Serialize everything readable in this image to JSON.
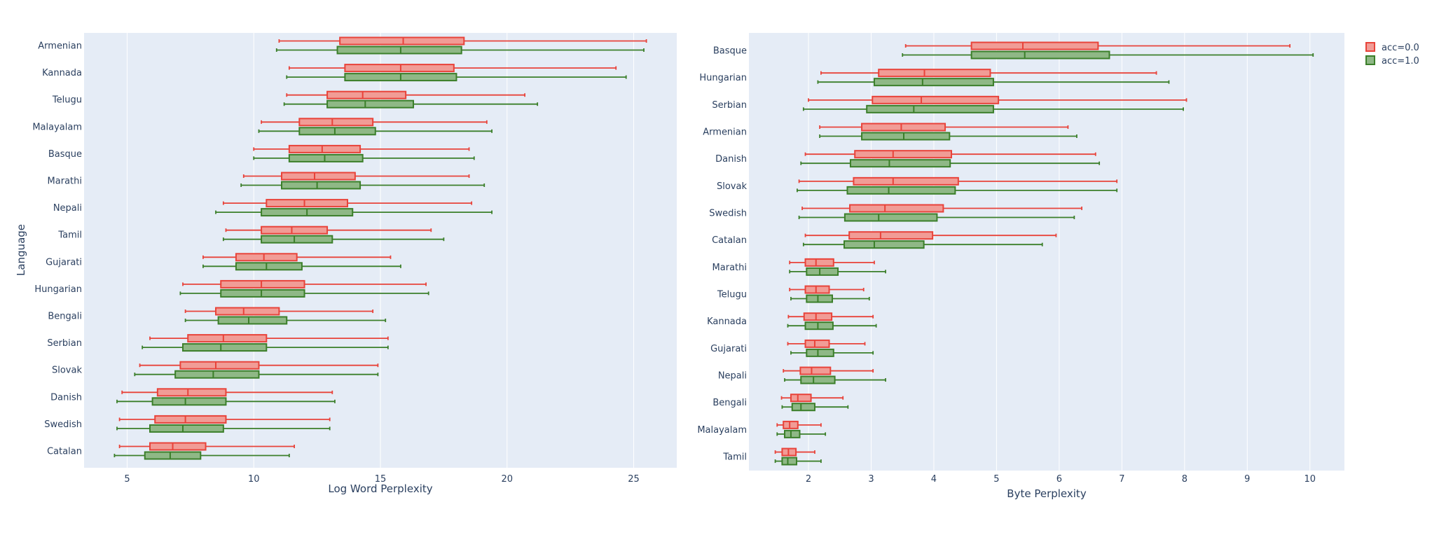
{
  "colors": {
    "plot_bg": "#e5ecf6",
    "grid": "#ffffff",
    "text": "#2a3f5f",
    "acc0_line": "#e8433a",
    "acc0_fill": "#f19c96",
    "acc1_line": "#3b7f2a",
    "acc1_fill": "#8fb886"
  },
  "chart_data": [
    {
      "type": "box",
      "orientation": "horizontal",
      "xlabel": "Log Word Perplexity",
      "ylabel": "Language",
      "xlim": [
        3.3,
        26.7
      ],
      "xticks": [
        5,
        10,
        15,
        20,
        25
      ],
      "grid": true,
      "categories": [
        "Armenian",
        "Kannada",
        "Telugu",
        "Malayalam",
        "Basque",
        "Marathi",
        "Nepali",
        "Tamil",
        "Gujarati",
        "Hungarian",
        "Bengali",
        "Serbian",
        "Slovak",
        "Danish",
        "Swedish",
        "Catalan"
      ],
      "series": [
        {
          "name": "acc=0.0",
          "color_key": "acc0",
          "boxes": [
            [
              11.0,
              13.4,
              15.9,
              18.3,
              25.5
            ],
            [
              11.4,
              13.6,
              15.8,
              17.9,
              24.3
            ],
            [
              11.3,
              12.9,
              14.3,
              16.0,
              20.7
            ],
            [
              10.3,
              11.8,
              13.1,
              14.7,
              19.2
            ],
            [
              10.0,
              11.4,
              12.7,
              14.2,
              18.5
            ],
            [
              9.6,
              11.1,
              12.4,
              14.0,
              18.5
            ],
            [
              8.8,
              10.5,
              12.0,
              13.7,
              18.6
            ],
            [
              8.9,
              10.3,
              11.5,
              12.9,
              17.0
            ],
            [
              8.0,
              9.3,
              10.4,
              11.7,
              15.4
            ],
            [
              7.2,
              8.7,
              10.3,
              12.0,
              16.8
            ],
            [
              7.3,
              8.5,
              9.6,
              11.0,
              14.7
            ],
            [
              5.9,
              7.4,
              8.8,
              10.5,
              15.3
            ],
            [
              5.5,
              7.1,
              8.5,
              10.2,
              14.9
            ],
            [
              4.8,
              6.2,
              7.4,
              8.9,
              13.1
            ],
            [
              4.7,
              6.1,
              7.3,
              8.9,
              13.0
            ],
            [
              4.7,
              5.9,
              6.8,
              8.1,
              11.6
            ]
          ]
        },
        {
          "name": "acc=1.0",
          "color_key": "acc1",
          "boxes": [
            [
              10.9,
              13.3,
              15.8,
              18.2,
              25.4
            ],
            [
              11.3,
              13.6,
              15.8,
              18.0,
              24.7
            ],
            [
              11.2,
              12.9,
              14.4,
              16.3,
              21.2
            ],
            [
              10.2,
              11.8,
              13.2,
              14.8,
              19.4
            ],
            [
              10.0,
              11.4,
              12.8,
              14.3,
              18.7
            ],
            [
              9.5,
              11.1,
              12.5,
              14.2,
              19.1
            ],
            [
              8.5,
              10.3,
              12.1,
              13.9,
              19.4
            ],
            [
              8.8,
              10.3,
              11.6,
              13.1,
              17.5
            ],
            [
              8.0,
              9.3,
              10.5,
              11.9,
              15.8
            ],
            [
              7.1,
              8.7,
              10.3,
              12.0,
              16.9
            ],
            [
              7.3,
              8.6,
              9.8,
              11.3,
              15.2
            ],
            [
              5.6,
              7.2,
              8.7,
              10.5,
              15.3
            ],
            [
              5.3,
              6.9,
              8.4,
              10.2,
              14.9
            ],
            [
              4.6,
              6.0,
              7.3,
              8.9,
              13.2
            ],
            [
              4.6,
              5.9,
              7.2,
              8.8,
              13.0
            ],
            [
              4.5,
              5.7,
              6.7,
              7.9,
              11.4
            ]
          ]
        }
      ]
    },
    {
      "type": "box",
      "orientation": "horizontal",
      "xlabel": "Byte Perplexity",
      "ylabel": "",
      "xlim": [
        1.05,
        10.55
      ],
      "xticks": [
        2,
        3,
        4,
        5,
        6,
        7,
        8,
        9,
        10
      ],
      "grid": true,
      "categories": [
        "Basque",
        "Hungarian",
        "Serbian",
        "Armenian",
        "Danish",
        "Slovak",
        "Swedish",
        "Catalan",
        "Marathi",
        "Telugu",
        "Kannada",
        "Gujarati",
        "Nepali",
        "Bengali",
        "Malayalam",
        "Tamil"
      ],
      "series": [
        {
          "name": "acc=0.0",
          "color_key": "acc0",
          "boxes": [
            [
              3.55,
              4.6,
              5.42,
              6.62,
              9.68
            ],
            [
              2.2,
              3.12,
              3.85,
              4.9,
              7.55
            ],
            [
              2.0,
              3.02,
              3.8,
              5.03,
              8.03
            ],
            [
              2.18,
              2.85,
              3.48,
              4.18,
              6.14
            ],
            [
              1.95,
              2.74,
              3.35,
              4.28,
              6.58
            ],
            [
              1.85,
              2.72,
              3.35,
              4.39,
              6.92
            ],
            [
              1.9,
              2.66,
              3.22,
              4.15,
              6.36
            ],
            [
              1.95,
              2.65,
              3.15,
              3.98,
              5.95
            ],
            [
              1.7,
              1.95,
              2.12,
              2.4,
              3.05
            ],
            [
              1.7,
              1.95,
              2.12,
              2.33,
              2.88
            ],
            [
              1.68,
              1.93,
              2.12,
              2.37,
              3.03
            ],
            [
              1.67,
              1.95,
              2.1,
              2.33,
              2.9
            ],
            [
              1.6,
              1.87,
              2.05,
              2.35,
              3.03
            ],
            [
              1.57,
              1.72,
              1.83,
              2.04,
              2.55
            ],
            [
              1.5,
              1.6,
              1.7,
              1.83,
              2.2
            ],
            [
              1.47,
              1.58,
              1.68,
              1.8,
              2.1
            ]
          ]
        },
        {
          "name": "acc=1.0",
          "color_key": "acc1",
          "boxes": [
            [
              3.5,
              4.6,
              5.45,
              6.8,
              10.05
            ],
            [
              2.15,
              3.05,
              3.82,
              4.95,
              7.75
            ],
            [
              1.92,
              2.93,
              3.68,
              4.95,
              7.98
            ],
            [
              2.18,
              2.85,
              3.52,
              4.25,
              6.28
            ],
            [
              1.88,
              2.67,
              3.29,
              4.26,
              6.64
            ],
            [
              1.82,
              2.62,
              3.28,
              4.34,
              6.92
            ],
            [
              1.85,
              2.58,
              3.12,
              4.05,
              6.24
            ],
            [
              1.92,
              2.57,
              3.05,
              3.84,
              5.73
            ],
            [
              1.7,
              1.97,
              2.18,
              2.47,
              3.23
            ],
            [
              1.72,
              1.97,
              2.15,
              2.38,
              2.97
            ],
            [
              1.67,
              1.95,
              2.15,
              2.39,
              3.08
            ],
            [
              1.72,
              1.97,
              2.15,
              2.4,
              3.03
            ],
            [
              1.62,
              1.88,
              2.08,
              2.42,
              3.23
            ],
            [
              1.58,
              1.74,
              1.88,
              2.1,
              2.63
            ],
            [
              1.5,
              1.62,
              1.72,
              1.86,
              2.27
            ],
            [
              1.47,
              1.58,
              1.67,
              1.81,
              2.2
            ]
          ]
        }
      ]
    }
  ],
  "legend": {
    "items": [
      {
        "label": "acc=0.0",
        "color_key": "acc0"
      },
      {
        "label": "acc=1.0",
        "color_key": "acc1"
      }
    ]
  }
}
